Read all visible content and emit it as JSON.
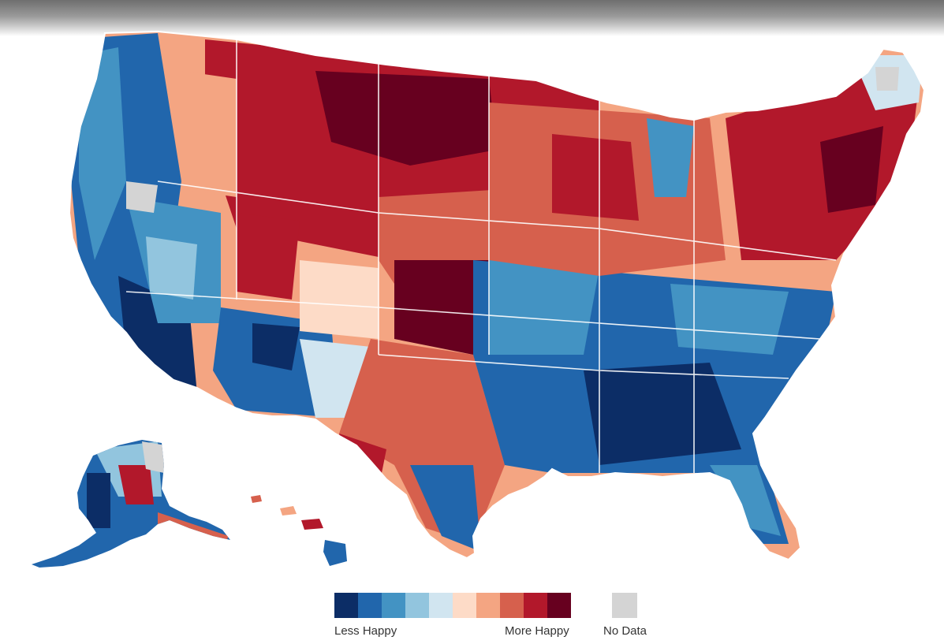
{
  "legend": {
    "scale_colors": [
      "#0c2d66",
      "#2166ac",
      "#4393c3",
      "#92c5de",
      "#d1e5f0",
      "#fddbc7",
      "#f4a582",
      "#d6604d",
      "#b2182b",
      "#67001f"
    ],
    "no_data_color": "#d4d4d4",
    "less_label": "Less Happy",
    "more_label": "More Happy",
    "no_data_label": "No Data"
  },
  "map": {
    "regions": [
      {
        "name": "contiguous-us",
        "tone": "mixed"
      },
      {
        "name": "alaska",
        "tone": "mixed"
      },
      {
        "name": "hawaii",
        "tone": "less-happy"
      }
    ],
    "pattern_summary": "More happy tones concentrated in the northern plains, upper Midwest and Northeast; less happy tones concentrated in the South, Appalachia and the West Coast"
  }
}
